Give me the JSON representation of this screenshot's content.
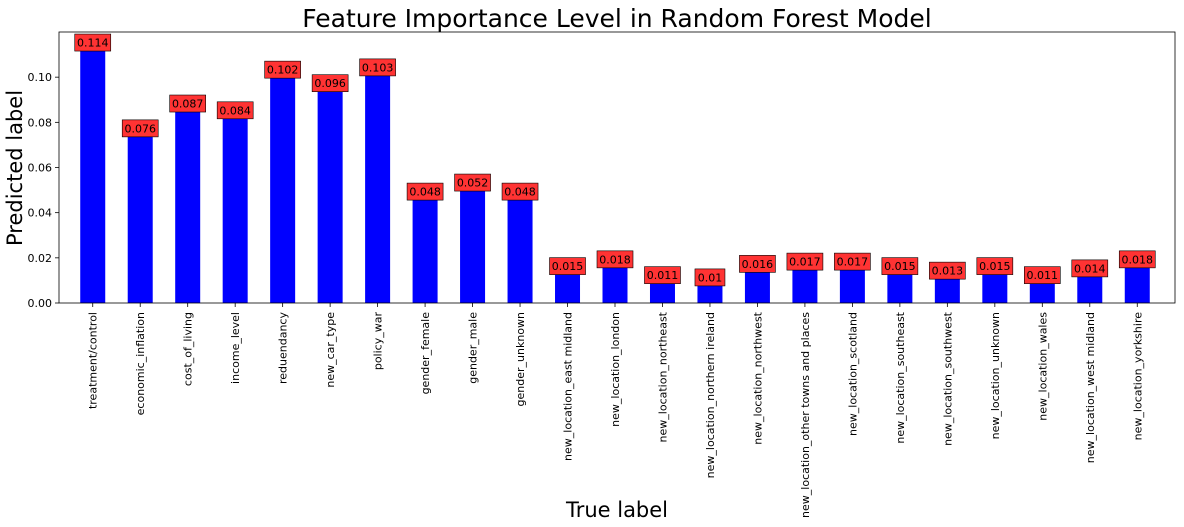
{
  "chart_data": {
    "type": "bar",
    "title": "Feature Importance Level in Random Forest Model",
    "xlabel": "True label",
    "ylabel": "Predicted label",
    "ylim": [
      0,
      0.12
    ],
    "yticks": [
      "0.00",
      "0.02",
      "0.04",
      "0.06",
      "0.08",
      "0.10"
    ],
    "grid": false,
    "bar_color": "#0000ff",
    "label_box_color": "#ff3333",
    "categories": [
      "treatment/control",
      "economic_inflation",
      "cost_of_living",
      "income_level",
      "reduendancy",
      "new_car_type",
      "policy_war",
      "gender_female",
      "gender_male",
      "gender_unknown",
      "new_location_east midland",
      "new_location_london",
      "new_location_northeast",
      "new_location_northern ireland",
      "new_location_northwest",
      "new_location_other towns and places",
      "new_location_scotland",
      "new_location_southeast",
      "new_location_southwest",
      "new_location_unknown",
      "new_location_wales",
      "new_location_west midland",
      "new_location_yorkshire"
    ],
    "values": [
      0.114,
      0.076,
      0.087,
      0.084,
      0.102,
      0.096,
      0.103,
      0.048,
      0.052,
      0.048,
      0.015,
      0.018,
      0.011,
      0.01,
      0.016,
      0.017,
      0.017,
      0.015,
      0.013,
      0.015,
      0.011,
      0.014,
      0.018
    ],
    "data_labels": [
      "0.114",
      "0.076",
      "0.087",
      "0.084",
      "0.102",
      "0.096",
      "0.103",
      "0.048",
      "0.052",
      "0.048",
      "0.015",
      "0.018",
      "0.011",
      "0.01",
      "0.016",
      "0.017",
      "0.017",
      "0.015",
      "0.013",
      "0.015",
      "0.011",
      "0.014",
      "0.018"
    ]
  }
}
